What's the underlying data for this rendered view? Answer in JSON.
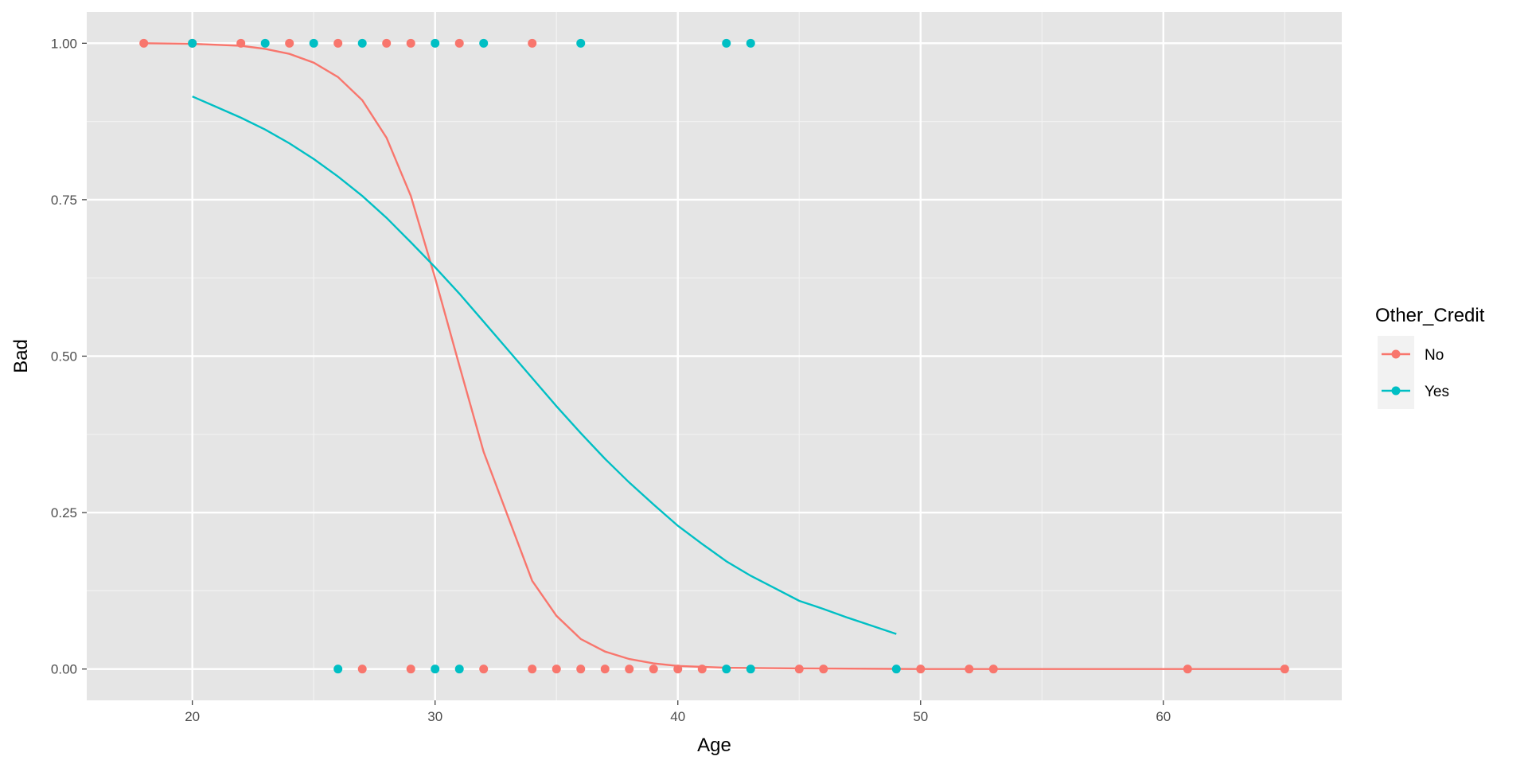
{
  "chart_data": {
    "type": "scatter",
    "xlabel": "Age",
    "ylabel": "Bad",
    "xlim": [
      15.65,
      67.35
    ],
    "ylim": [
      -0.05,
      1.05
    ],
    "x_ticks": [
      20,
      30,
      40,
      50,
      60
    ],
    "x_tick_labels": [
      "20",
      "30",
      "40",
      "50",
      "60"
    ],
    "y_ticks": [
      0,
      0.25,
      0.5,
      0.75,
      1
    ],
    "y_tick_labels": [
      "0.00",
      "0.25",
      "0.50",
      "0.75",
      "1.00"
    ],
    "grid": true,
    "legend": {
      "title": "Other_Credit",
      "placement": "right",
      "entries": [
        "No",
        "Yes"
      ]
    },
    "series": [
      {
        "name": "No",
        "color": "#F8766D",
        "points": [
          [
            18,
            1
          ],
          [
            20,
            1
          ],
          [
            22,
            1
          ],
          [
            24,
            1
          ],
          [
            26,
            1
          ],
          [
            28,
            1
          ],
          [
            29,
            1
          ],
          [
            31,
            1
          ],
          [
            34,
            1
          ],
          [
            27,
            0
          ],
          [
            29,
            0
          ],
          [
            32,
            0
          ],
          [
            34,
            0
          ],
          [
            35,
            0
          ],
          [
            36,
            0
          ],
          [
            37,
            0
          ],
          [
            38,
            0
          ],
          [
            39,
            0
          ],
          [
            40,
            0
          ],
          [
            41,
            0
          ],
          [
            45,
            0
          ],
          [
            46,
            0
          ],
          [
            50,
            0
          ],
          [
            52,
            0
          ],
          [
            53,
            0
          ],
          [
            61,
            0
          ],
          [
            65,
            0
          ]
        ],
        "curve": [
          [
            18,
            1.0
          ],
          [
            20,
            0.999
          ],
          [
            22,
            0.996
          ],
          [
            23,
            0.991
          ],
          [
            24,
            0.983
          ],
          [
            25,
            0.969
          ],
          [
            26,
            0.946
          ],
          [
            27,
            0.909
          ],
          [
            28,
            0.849
          ],
          [
            29,
            0.756
          ],
          [
            30,
            0.625
          ],
          [
            31,
            0.485
          ],
          [
            32,
            0.347
          ],
          [
            33,
            0.244
          ],
          [
            34,
            0.141
          ],
          [
            35,
            0.085
          ],
          [
            36,
            0.048
          ],
          [
            37,
            0.028
          ],
          [
            38,
            0.016
          ],
          [
            39,
            0.009
          ],
          [
            40,
            0.005
          ],
          [
            42,
            0.002
          ],
          [
            45,
            0.001
          ],
          [
            50,
            0.0
          ],
          [
            55,
            0.0
          ],
          [
            60,
            0.0
          ],
          [
            65,
            0.0
          ]
        ]
      },
      {
        "name": "Yes",
        "color": "#00BFC4",
        "points": [
          [
            20,
            1
          ],
          [
            23,
            1
          ],
          [
            25,
            1
          ],
          [
            27,
            1
          ],
          [
            30,
            1
          ],
          [
            32,
            1
          ],
          [
            36,
            1
          ],
          [
            42,
            1
          ],
          [
            43,
            1
          ],
          [
            26,
            0
          ],
          [
            30,
            0
          ],
          [
            31,
            0
          ],
          [
            42,
            0
          ],
          [
            43,
            0
          ],
          [
            49,
            0
          ]
        ],
        "curve": [
          [
            20,
            0.915
          ],
          [
            21,
            0.898
          ],
          [
            22,
            0.881
          ],
          [
            23,
            0.862
          ],
          [
            24,
            0.84
          ],
          [
            25,
            0.815
          ],
          [
            26,
            0.787
          ],
          [
            27,
            0.756
          ],
          [
            28,
            0.721
          ],
          [
            29,
            0.682
          ],
          [
            30,
            0.642
          ],
          [
            31,
            0.6
          ],
          [
            32,
            0.555
          ],
          [
            33,
            0.51
          ],
          [
            34,
            0.465
          ],
          [
            35,
            0.42
          ],
          [
            36,
            0.377
          ],
          [
            37,
            0.336
          ],
          [
            38,
            0.298
          ],
          [
            39,
            0.263
          ],
          [
            40,
            0.229
          ],
          [
            41,
            0.2
          ],
          [
            42,
            0.172
          ],
          [
            43,
            0.149
          ],
          [
            44,
            0.129
          ],
          [
            45,
            0.109
          ],
          [
            46,
            0.096
          ],
          [
            47,
            0.082
          ],
          [
            48,
            0.069
          ],
          [
            49,
            0.056
          ]
        ]
      }
    ]
  }
}
